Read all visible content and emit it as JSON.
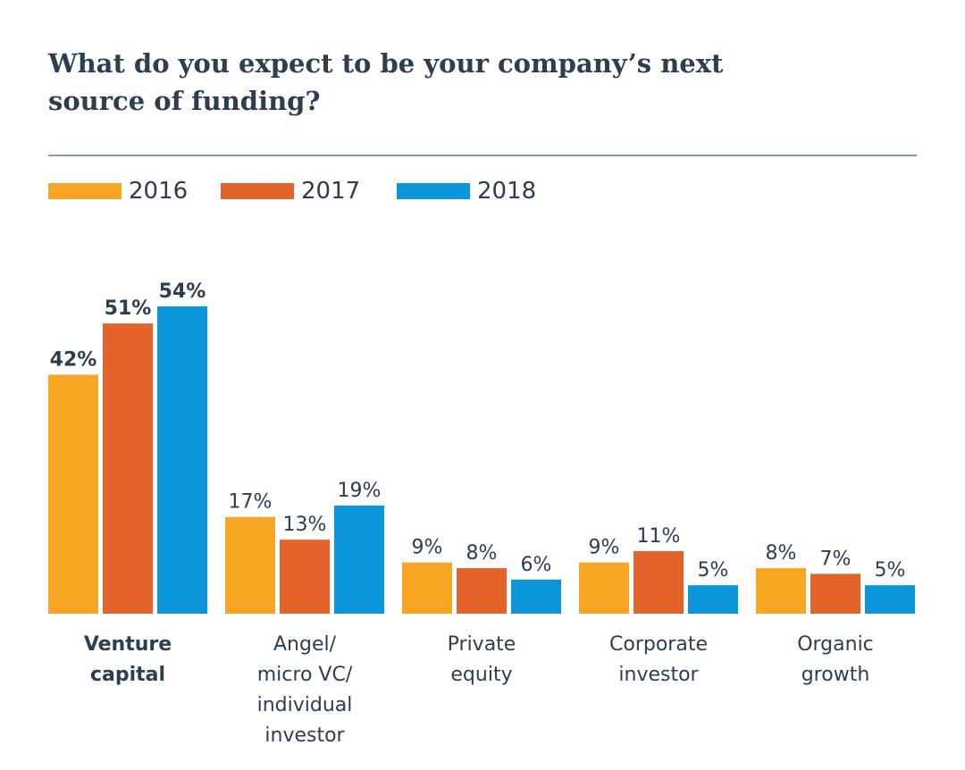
{
  "chart_data": {
    "type": "bar",
    "title": "What do you expect to be your company’s next source of funding?",
    "title_lines": [
      "What do you expect to be your company’s next",
      "source of funding?"
    ],
    "xlabel": "",
    "ylabel": "",
    "ylim": [
      0,
      54
    ],
    "grid": false,
    "legend_position": "top-left",
    "value_suffix": "%",
    "categories": [
      [
        "Venture",
        "capital"
      ],
      [
        "Angel/",
        "micro VC/",
        "individual",
        "investor"
      ],
      [
        "Private",
        "equity"
      ],
      [
        "Corporate",
        "investor"
      ],
      [
        "Organic",
        "growth"
      ]
    ],
    "highlight_category": 0,
    "series": [
      {
        "name": "2016",
        "color": "#f6a623",
        "values": [
          42,
          17,
          9,
          9,
          8
        ]
      },
      {
        "name": "2017",
        "color": "#e4632a",
        "values": [
          51,
          13,
          8,
          11,
          7
        ]
      },
      {
        "name": "2018",
        "color": "#0a96d9",
        "values": [
          54,
          19,
          6,
          5,
          5
        ]
      }
    ]
  }
}
